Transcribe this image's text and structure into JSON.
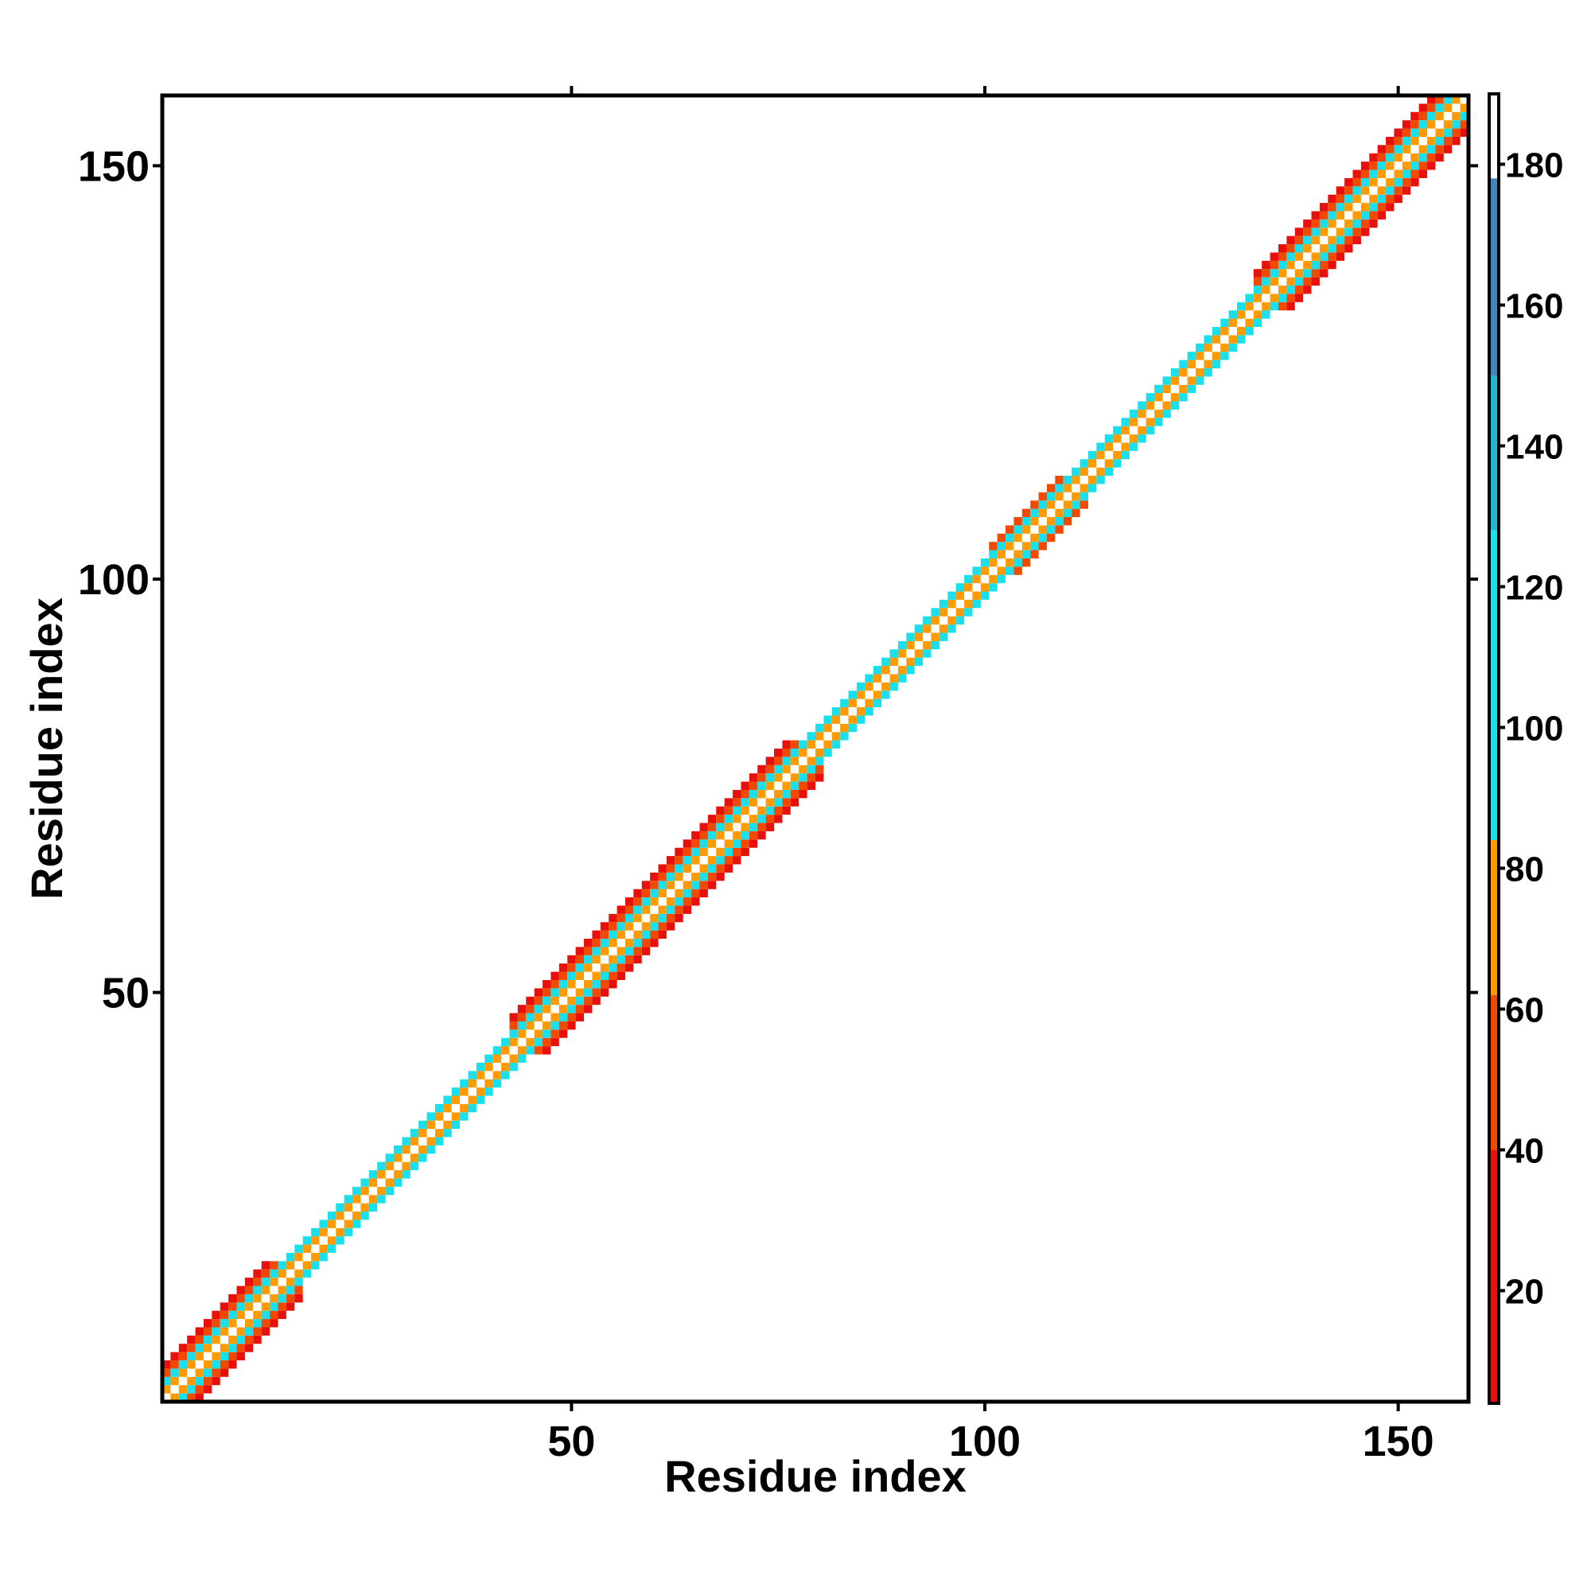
{
  "chart_data": {
    "type": "heatmap",
    "title": "",
    "xlabel": "Residue index",
    "ylabel": "Residue index",
    "xlim": [
      0.5,
      158.5
    ],
    "ylim": [
      0.5,
      158.5
    ],
    "x_ticks": [
      50,
      100,
      150
    ],
    "x_tick_labels": [
      "50",
      "100",
      "150"
    ],
    "y_ticks": [
      50,
      100,
      150
    ],
    "y_tick_labels": [
      "50",
      "100",
      "150"
    ],
    "colorbar": {
      "range": [
        4,
        190
      ],
      "ticks": [
        20,
        40,
        60,
        80,
        100,
        120,
        140,
        160,
        180
      ],
      "tick_labels": [
        "20",
        "40",
        "60",
        "80",
        "100",
        "120",
        "140",
        "160",
        "180"
      ],
      "segments": [
        {
          "from": 4,
          "to": 40,
          "color": "#e8100c"
        },
        {
          "from": 40,
          "to": 62,
          "color": "#f04a00"
        },
        {
          "from": 62,
          "to": 84,
          "color": "#ff9a00"
        },
        {
          "from": 84,
          "to": 128,
          "color": "#1ae0ee"
        },
        {
          "from": 128,
          "to": 150,
          "color": "#22b5d6"
        },
        {
          "from": 150,
          "to": 178,
          "color": "#3f86bd"
        },
        {
          "from": 178,
          "to": 190,
          "color": "#ffffff"
        }
      ]
    },
    "diagonal_band": {
      "n_residues": 158,
      "description_segments": [
        {
          "from": 1,
          "to": 17,
          "half_width": 4
        },
        {
          "from": 17,
          "to": 42,
          "half_width": 2
        },
        {
          "from": 42,
          "to": 80,
          "half_width": 4
        },
        {
          "from": 80,
          "to": 100,
          "half_width": 2
        },
        {
          "from": 100,
          "to": 112,
          "half_width": 3
        },
        {
          "from": 112,
          "to": 132,
          "half_width": 2
        },
        {
          "from": 132,
          "to": 158,
          "half_width": 4
        }
      ],
      "colors": {
        "diagonal": "#ffffff",
        "offset_1": "#ff9a00",
        "offset_2": "#1ae0ee",
        "offset_3": "#f04a00",
        "offset_4": "#e8100c"
      }
    }
  }
}
